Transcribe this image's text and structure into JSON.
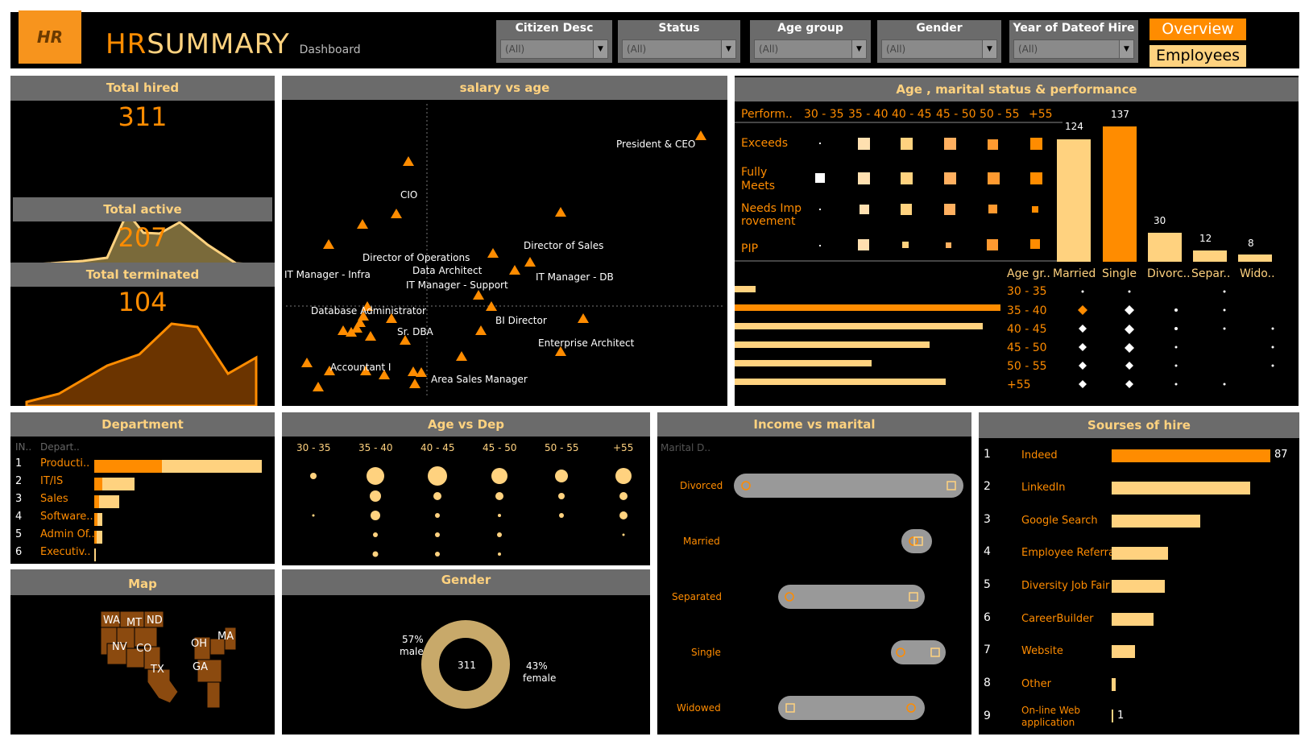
{
  "header": {
    "logo": "HR",
    "title_hr": "HR",
    "title_summary": "SUMMARY",
    "subtitle": "Dashboard",
    "filters": [
      {
        "label": "Citizen Desc",
        "value": "(All)"
      },
      {
        "label": "Status",
        "value": "(All)"
      },
      {
        "label": "Age group",
        "value": "(All)"
      },
      {
        "label": "Gender",
        "value": "(All)"
      },
      {
        "label": "Year of Dateof Hire",
        "value": "(All)"
      }
    ],
    "overview_label": "Overview",
    "employees_label": "Employees"
  },
  "kpis": {
    "hired_label": "Total hired",
    "hired_value": "311",
    "active_label": "Total active",
    "active_value": "207",
    "terminated_label": "Total terminated",
    "terminated_value": "104"
  },
  "salary_age": {
    "title": "salary vs age",
    "labels": [
      "President & CEO",
      "CIO",
      "Director of Sales",
      "Director of Operations",
      "Data Architect",
      "IT Manager - Infra",
      "IT Manager - Support",
      "IT Manager - DB",
      "Database Administrator",
      "BI Director",
      "Sr. DBA",
      "Enterprise Architect",
      "Accountant I",
      "Area Sales Manager"
    ]
  },
  "perf": {
    "title": "Age , marital status & performance",
    "col_head": "Perform..",
    "age_cols": [
      "30 - 35",
      "35 - 40",
      "40 - 45",
      "45 - 50",
      "50 - 55",
      "+55"
    ],
    "rows": [
      "Exceeds",
      "Fully Meets",
      "Needs Improvement",
      "PIP"
    ],
    "marital": [
      "Married",
      "Single",
      "Divorc..",
      "Separ..",
      "Wido.."
    ],
    "marital_values": [
      124,
      137,
      30,
      12,
      8
    ],
    "age_head": "Age gr..",
    "age_rows": [
      "30 - 35",
      "35 - 40",
      "40 - 45",
      "45 - 50",
      "50 - 55",
      "+55"
    ]
  },
  "department": {
    "title": "Department",
    "col1": "IN..",
    "col2": "Depart..",
    "rows": [
      {
        "idx": "1",
        "name": "Producti.."
      },
      {
        "idx": "2",
        "name": "IT/IS"
      },
      {
        "idx": "3",
        "name": "Sales"
      },
      {
        "idx": "4",
        "name": "Software.."
      },
      {
        "idx": "5",
        "name": "Admin Of.."
      },
      {
        "idx": "6",
        "name": "Executiv.."
      }
    ]
  },
  "age_dep": {
    "title": "Age vs Dep",
    "cols": [
      "30 - 35",
      "35 - 40",
      "40 - 45",
      "45 - 50",
      "50 - 55",
      "+55"
    ]
  },
  "income_marital": {
    "title": "Income vs marital",
    "col": "Marital D..",
    "rows": [
      "Divorced",
      "Married",
      "Separated",
      "Single",
      "Widowed"
    ]
  },
  "sources": {
    "title": "Sourses of hire",
    "rows": [
      {
        "idx": "1",
        "name": "Indeed",
        "value": "87"
      },
      {
        "idx": "2",
        "name": "LinkedIn",
        "value": ""
      },
      {
        "idx": "3",
        "name": "Google Search",
        "value": ""
      },
      {
        "idx": "4",
        "name": "Employee Referral",
        "value": ""
      },
      {
        "idx": "5",
        "name": "Diversity Job Fair",
        "value": ""
      },
      {
        "idx": "6",
        "name": "CareerBuilder",
        "value": ""
      },
      {
        "idx": "7",
        "name": "Website",
        "value": ""
      },
      {
        "idx": "8",
        "name": "Other",
        "value": ""
      },
      {
        "idx": "9",
        "name": "On-line Web application",
        "value": "1"
      }
    ]
  },
  "map": {
    "title": "Map",
    "states": [
      "WA",
      "MT",
      "ND",
      "NV",
      "CO",
      "TX",
      "OH",
      "MA",
      "GA"
    ]
  },
  "gender": {
    "title": "Gender",
    "total": "311",
    "male_pct": "57%",
    "male_label": "male",
    "female_pct": "43%",
    "female_label": "female"
  },
  "colors": {
    "orange": "#ff8c00",
    "light": "#ffd27f",
    "grey": "#6b6b6b",
    "bg": "#000000"
  }
}
